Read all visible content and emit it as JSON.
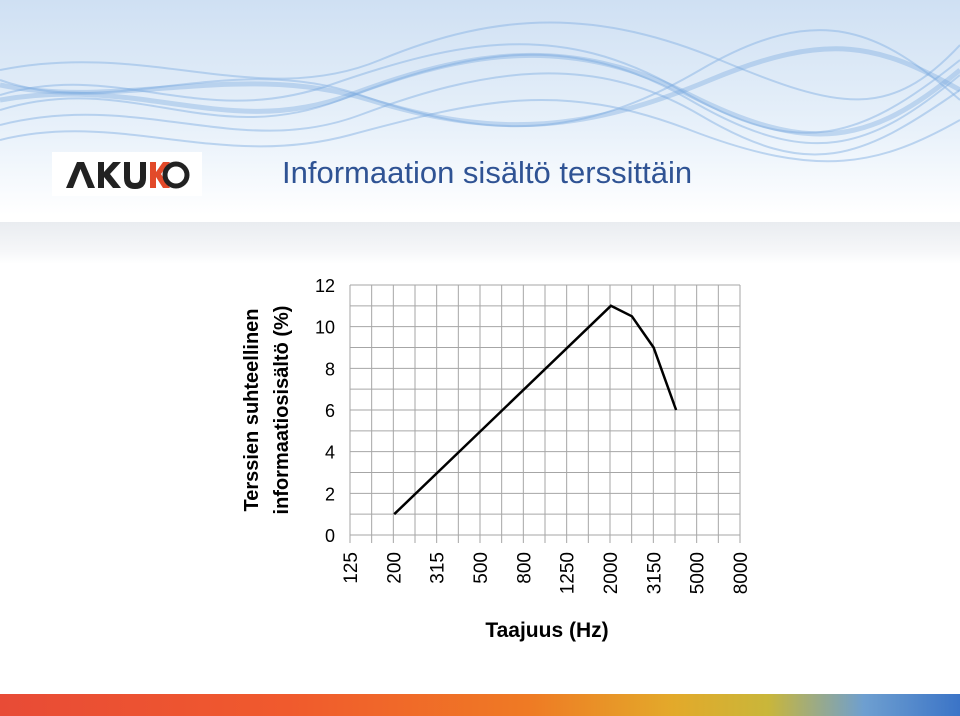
{
  "slide": {
    "title": "Informaation sisältö terssittäin",
    "logo_text": "AKUKON"
  },
  "colors": {
    "title": "#2f5394",
    "line": "#000000",
    "grid": "#a6a6a6"
  },
  "chart_data": {
    "type": "line",
    "title": "",
    "xlabel": "Taajuus (Hz)",
    "ylabel_lines": [
      "Terssien suhteellinen",
      "informaatiosisältö (%)"
    ],
    "x_categories": [
      "125",
      "200",
      "315",
      "500",
      "800",
      "1250",
      "2000",
      "3150",
      "5000",
      "8000"
    ],
    "y_ticks": [
      "0",
      "2",
      "4",
      "6",
      "8",
      "10",
      "12"
    ],
    "ylim": [
      0,
      12
    ],
    "grid": true,
    "series": [
      {
        "points": [
          {
            "x": "200",
            "y": 1.0
          },
          {
            "x": "2000",
            "y": 11.0
          },
          {
            "x": "2500",
            "y": 10.5
          },
          {
            "x": "3150",
            "y": 9.0
          },
          {
            "x": "4000",
            "y": 6.0
          }
        ]
      }
    ]
  }
}
